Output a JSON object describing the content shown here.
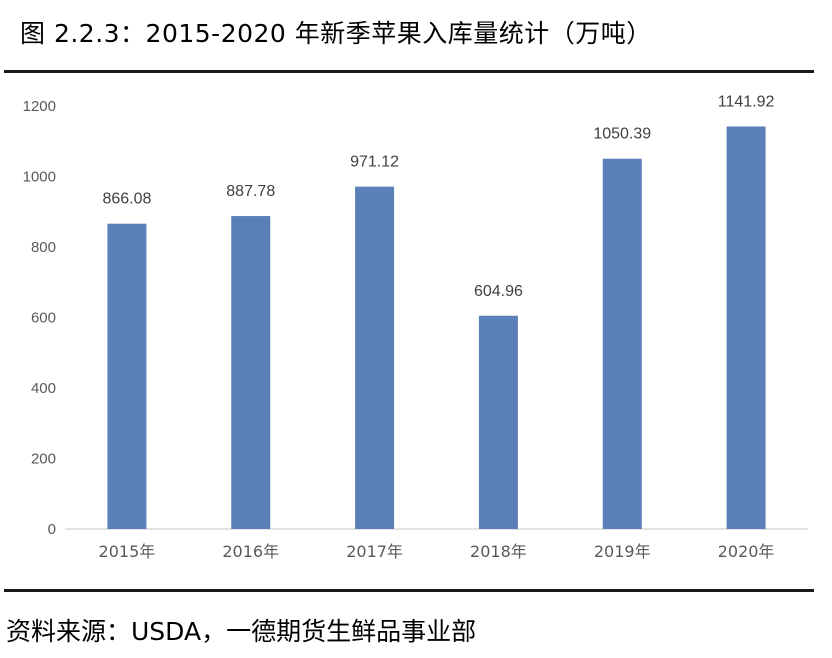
{
  "figure": {
    "title": "图 2.2.3：2015-2020 年新季苹果入库量统计（万吨）",
    "source": "资料来源：USDA，一德期货生鲜品事业部"
  },
  "chart_data": {
    "type": "bar",
    "categories": [
      "2015年",
      "2016年",
      "2017年",
      "2018年",
      "2019年",
      "2020年"
    ],
    "values": [
      866.08,
      887.78,
      971.12,
      604.96,
      1050.39,
      1141.92
    ],
    "data_labels": [
      "866.08",
      "887.78",
      "971.12",
      "604.96",
      "1050.39",
      "1141.92"
    ],
    "y_ticks": [
      "0",
      "200",
      "400",
      "600",
      "800",
      "1000",
      "1200"
    ],
    "ylim": [
      0,
      1200
    ],
    "grid": false,
    "bar_color": "#5b7fb9"
  }
}
